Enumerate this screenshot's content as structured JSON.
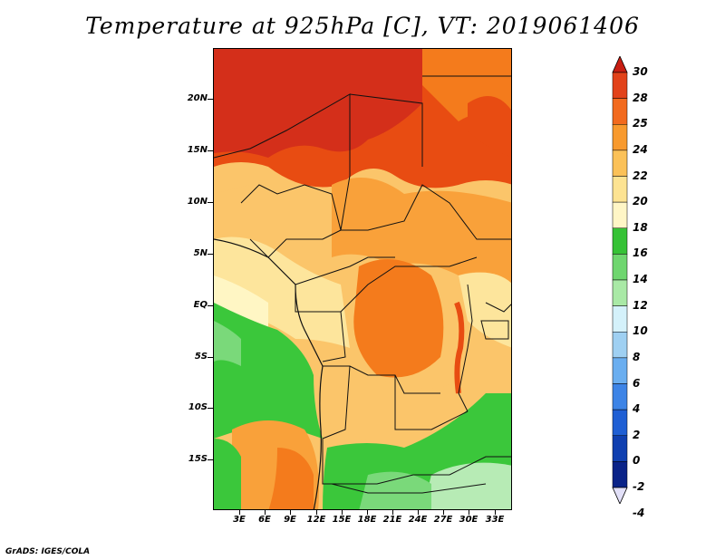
{
  "title": "Temperature at 925hPa [C], VT: 2019061406",
  "footer": "GrADS: IGES/COLA",
  "map": {
    "region": "Central Africa",
    "lat_labels": [
      "20N",
      "15N",
      "10N",
      "5N",
      "EQ",
      "5S",
      "10S",
      "15S"
    ],
    "lon_labels": [
      "3E",
      "6E",
      "9E",
      "12E",
      "15E",
      "18E",
      "21E",
      "24E",
      "27E",
      "30E",
      "33E"
    ],
    "field_colors": {
      "hot30": "#d42f1a",
      "c28": "#e84c12",
      "c25": "#f47b1c",
      "c24": "#f9a13a",
      "c22": "#fbc56a",
      "c20": "#fde59c",
      "c18": "#fff6c4",
      "g16": "#3bc73b",
      "g14": "#7ad97a",
      "g12": "#b7ebb5"
    }
  },
  "colorbar": {
    "labels": [
      "30",
      "28",
      "25",
      "24",
      "22",
      "20",
      "18",
      "16",
      "14",
      "12",
      "10",
      "8",
      "6",
      "4",
      "2",
      "0",
      "-2",
      "-4"
    ],
    "colors": [
      "#c81e12",
      "#e2421a",
      "#f26a1e",
      "#f89a2e",
      "#fbc158",
      "#fde392",
      "#fff6c6",
      "#36c236",
      "#6fd66f",
      "#a9e9a6",
      "#d4f1fa",
      "#9fd0f2",
      "#6aaef0",
      "#3d84e6",
      "#1f5fd4",
      "#0f3fb0",
      "#0a2388",
      "#06105c"
    ],
    "arrow_top_color": "#c81e12",
    "arrow_bottom_color": "#e2e0f8"
  }
}
